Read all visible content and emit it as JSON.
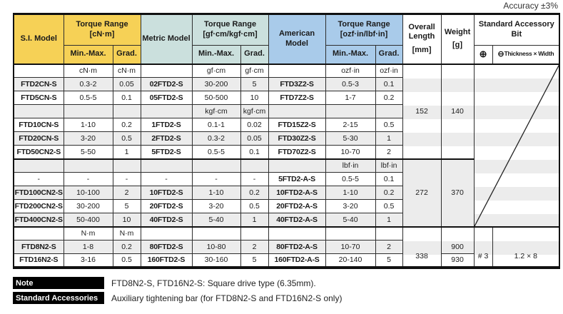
{
  "accuracy_note": "Accuracy ±3%",
  "colors": {
    "header_yellow": "#F6D156",
    "header_teal": "#CBE0DD",
    "header_blue": "#A9CBEA",
    "stripe_gray": "#ECECEC",
    "note_label_bg": "#000000"
  },
  "table": {
    "headers": {
      "si_model": "S.I. Model",
      "torque_cn": {
        "title": "Torque Range",
        "unit": "[cN·m]"
      },
      "metric_model": "Metric Model",
      "torque_gf": {
        "title": "Torque Range",
        "unit": "[gf·cm/kgf·cm]"
      },
      "american_model": "American Model",
      "torque_ozf": {
        "title": "Torque Range",
        "unit": "[ozf·in/lbf·in]"
      },
      "overall_length": {
        "title": "Overall Length",
        "unit": "[mm]"
      },
      "weight": {
        "title": "Weight",
        "unit": "[g]"
      },
      "accessory_title": "Standard Accessory Bit",
      "min_max": "Min.-Max.",
      "grad": "Grad.",
      "phillips_symbol": "⊕",
      "slotted_symbol": "⊖",
      "slotted_label": "Thickness × Width"
    },
    "rows": [
      {
        "type": "unit",
        "cells": [
          "",
          "cN·m",
          "cN·m",
          "",
          "gf·cm",
          "gf·cm",
          "",
          "ozf·in",
          "ozf·in"
        ]
      },
      {
        "type": "data",
        "cells": [
          "FTD2CN-S",
          "0.3-2",
          "0.05",
          "02FTD2-S",
          "30-200",
          "5",
          "FTD3Z2-S",
          "0.5-3",
          "0.1"
        ]
      },
      {
        "type": "data",
        "cells": [
          "FTD5CN-S",
          "0.5-5",
          "0.1",
          "05FTD2-S",
          "50-500",
          "10",
          "FTD7Z2-S",
          "1-7",
          "0.2"
        ]
      },
      {
        "type": "unit",
        "cells": [
          "",
          "",
          "",
          "",
          "kgf·cm",
          "kgf·cm",
          "",
          "",
          ""
        ]
      },
      {
        "type": "data",
        "cells": [
          "FTD10CN-S",
          "1-10",
          "0.2",
          "1FTD2-S",
          "0.1-1",
          "0.02",
          "FTD15Z2-S",
          "2-15",
          "0.5"
        ]
      },
      {
        "type": "data",
        "cells": [
          "FTD20CN-S",
          "3-20",
          "0.5",
          "2FTD2-S",
          "0.3-2",
          "0.05",
          "FTD30Z2-S",
          "5-30",
          "1"
        ]
      },
      {
        "type": "data",
        "cells": [
          "FTD50CN2-S",
          "5-50",
          "1",
          "5FTD2-S",
          "0.5-5",
          "0.1",
          "FTD70Z2-S",
          "10-70",
          "2"
        ]
      },
      {
        "type": "unit",
        "cells": [
          "",
          "",
          "",
          "",
          "",
          "",
          "",
          "lbf·in",
          "lbf·in"
        ]
      },
      {
        "type": "data",
        "cells": [
          "-",
          "-",
          "-",
          "-",
          "-",
          "-",
          "5FTD2-A-S",
          "0.5-5",
          "0.1"
        ]
      },
      {
        "type": "data",
        "cells": [
          "FTD100CN2-S",
          "10-100",
          "2",
          "10FTD2-S",
          "1-10",
          "0.2",
          "10FTD2-A-S",
          "1-10",
          "0.2"
        ]
      },
      {
        "type": "data",
        "cells": [
          "FTD200CN2-S",
          "30-200",
          "5",
          "20FTD2-S",
          "3-20",
          "0.5",
          "20FTD2-A-S",
          "3-20",
          "0.5"
        ]
      },
      {
        "type": "data",
        "cells": [
          "FTD400CN2-S",
          "50-400",
          "10",
          "40FTD2-S",
          "5-40",
          "1",
          "40FTD2-A-S",
          "5-40",
          "1"
        ]
      },
      {
        "type": "unit",
        "cells": [
          "",
          "N·m",
          "N·m",
          "",
          "",
          "",
          "",
          "",
          ""
        ]
      },
      {
        "type": "data",
        "cells": [
          "FTD8N2-S",
          "1-8",
          "0.2",
          "80FTD2-S",
          "10-80",
          "2",
          "80FTD2-A-S",
          "10-70",
          "2"
        ]
      },
      {
        "type": "data",
        "cells": [
          "FTD16N2-S",
          "3-16",
          "0.5",
          "160FTD2-S",
          "30-160",
          "5",
          "160FTD2-A-S",
          "20-140",
          "5"
        ]
      }
    ],
    "merged": {
      "group1": {
        "length": "152",
        "weight": "140"
      },
      "group2": {
        "length": "272",
        "weight": "370"
      },
      "group3": {
        "length": "338",
        "weight_top": "900",
        "weight_bottom": "930",
        "phillips": "# 3",
        "slotted": "1.2 × 8"
      }
    }
  },
  "notes": [
    {
      "label": "Note",
      "text": "FTD8N2-S, FTD16N2-S: Square drive type (6.35mm)."
    },
    {
      "label": "Standard Accessories",
      "text": "Auxiliary tightening bar (for FTD8N2-S and FTD16N2-S only)"
    }
  ]
}
